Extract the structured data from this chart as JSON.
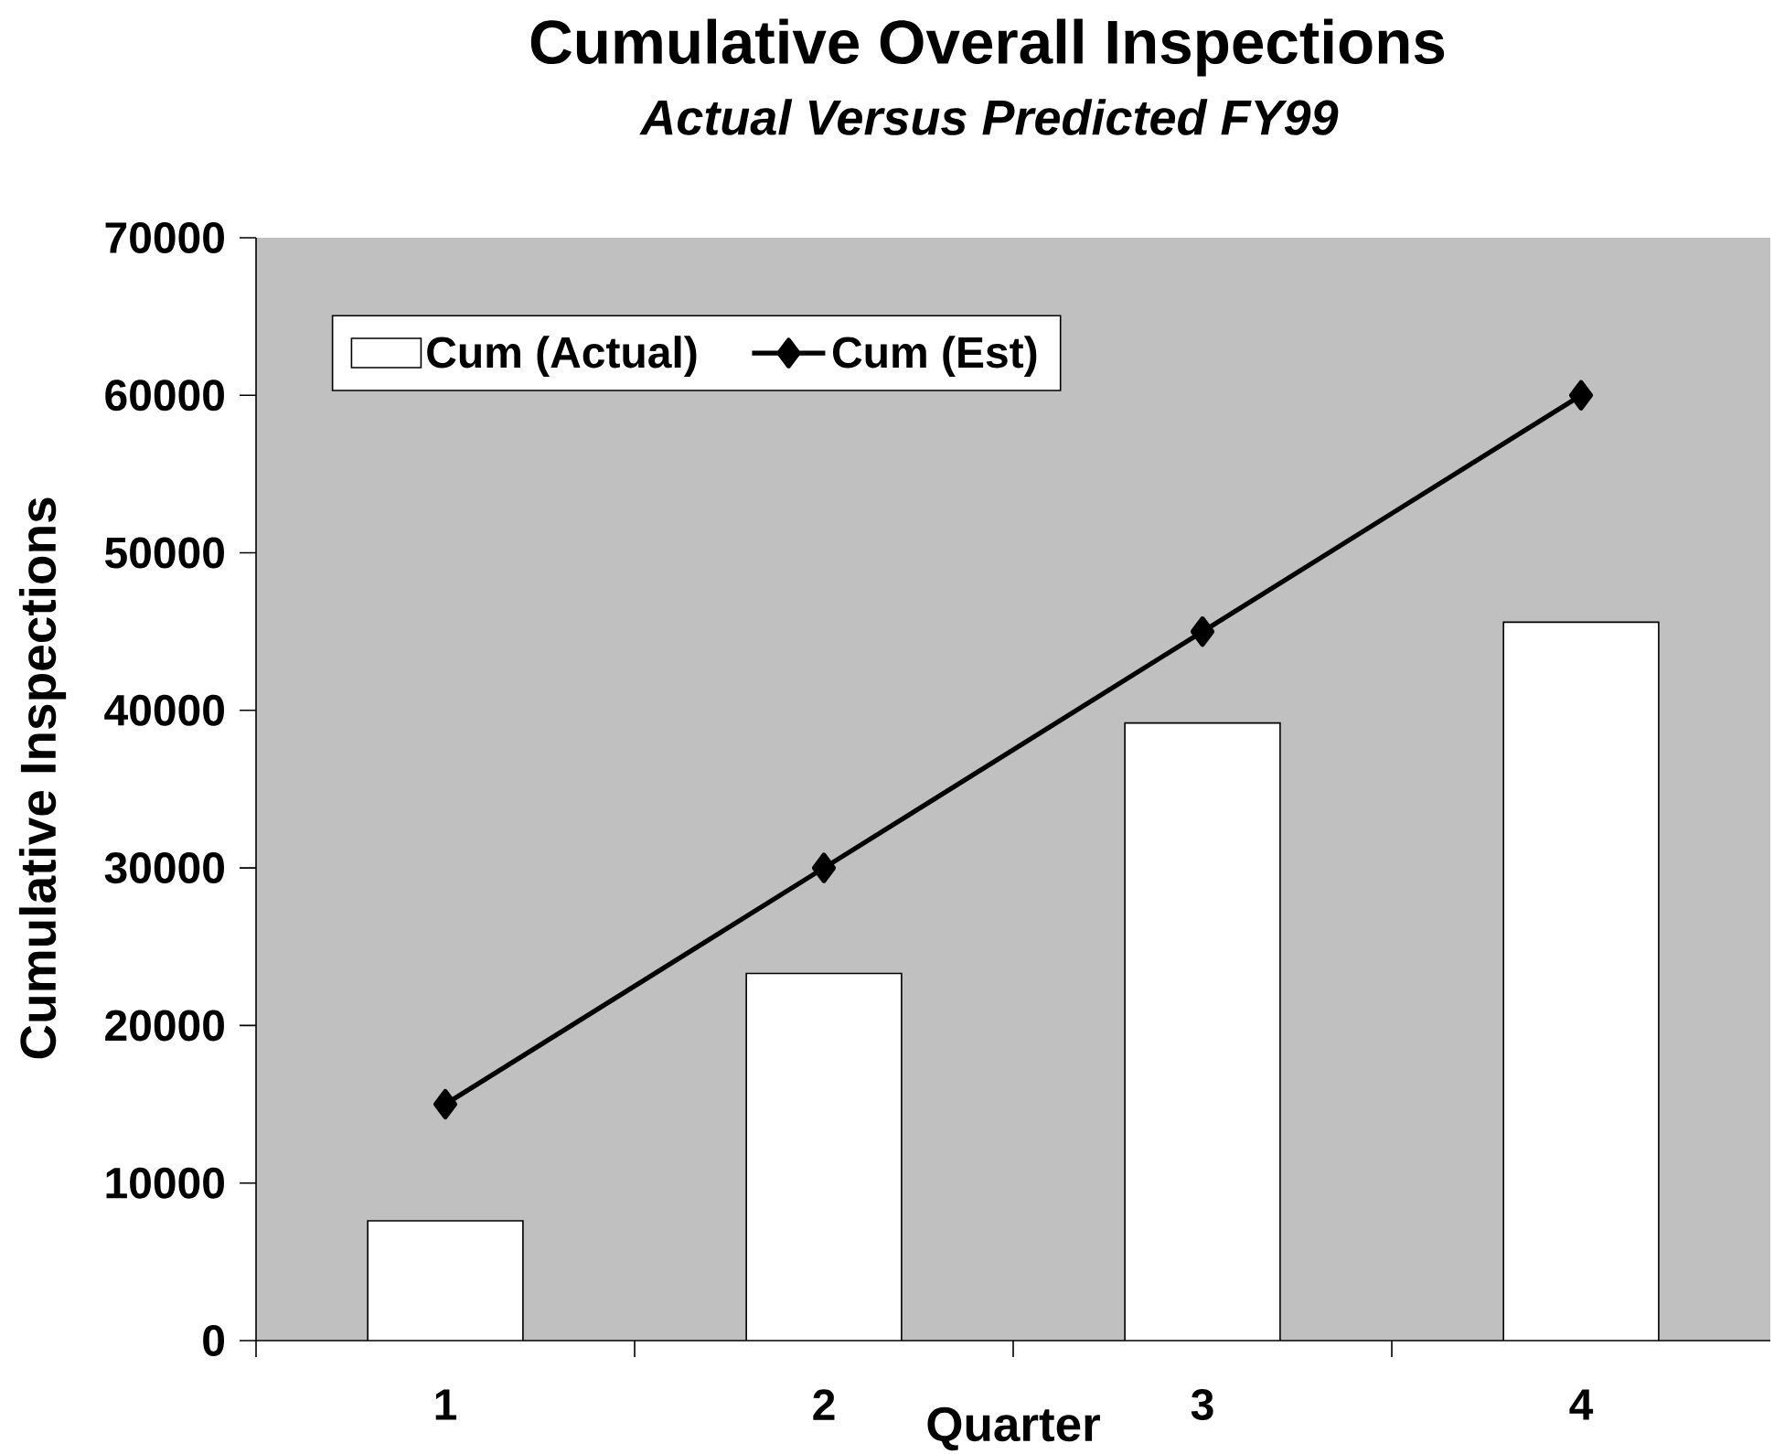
{
  "chart_data": {
    "type": "bar",
    "title": "Cumulative Overall Inspections",
    "subtitle": "Actual Versus  Predicted FY99",
    "xlabel": "Quarter",
    "ylabel": "Cumulative Inspections",
    "categories": [
      "1",
      "2",
      "3",
      "4"
    ],
    "series": [
      {
        "name": "Cum (Actual)",
        "color": "#ffffff",
        "values": [
          7600,
          23300,
          39200,
          45600
        ]
      },
      {
        "name": "Cum (Est)",
        "type": "line",
        "color": "#000000",
        "marker": "diamond",
        "line_style": "solid",
        "values": [
          15000,
          30000,
          45000,
          60000
        ]
      }
    ],
    "ylim": [
      0,
      70000
    ],
    "yticks": [
      0,
      10000,
      20000,
      30000,
      40000,
      50000,
      60000,
      70000
    ],
    "grid": false,
    "legend": "top left"
  }
}
